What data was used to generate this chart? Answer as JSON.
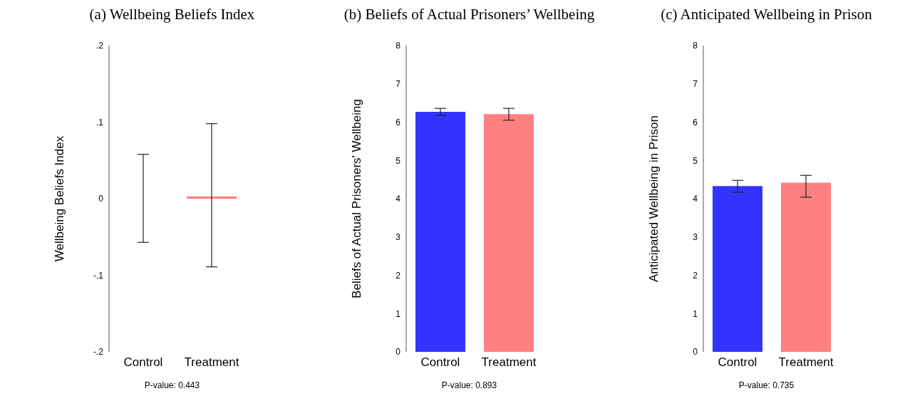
{
  "chart_data": [
    {
      "type": "bar",
      "title": "(a) Wellbeing Beliefs Index",
      "ylabel": "Wellbeing Beliefs Index",
      "categories": [
        "Control",
        "Treatment"
      ],
      "values": [
        0,
        0.003
      ],
      "colors": [
        "#3333ff",
        "#ff8080"
      ],
      "errors": [
        [
          -0.057,
          0.058
        ],
        [
          -0.089,
          0.098
        ]
      ],
      "ylim": [
        -0.2,
        0.2
      ],
      "yticks": [
        {
          "value": -0.2,
          "label": "-.2"
        },
        {
          "value": -0.1,
          "label": "-.1"
        },
        0,
        {
          "value": 0.1,
          "label": ".1"
        },
        {
          "value": 0.2,
          "label": ".2"
        }
      ],
      "annotations": [
        "P-value: 0.443"
      ]
    },
    {
      "type": "bar",
      "title": "(b) Beliefs of Actual Prisoners’ Wellbeing",
      "ylabel": "Beliefs of Actual Prisoners' Wellbeing",
      "categories": [
        "Control",
        "Treatment"
      ],
      "values": [
        6.27,
        6.21
      ],
      "colors": [
        "#3333ff",
        "#ff8080"
      ],
      "errors": [
        [
          6.18,
          6.36
        ],
        [
          6.05,
          6.36
        ]
      ],
      "ylim": [
        0,
        8
      ],
      "yticks": [
        0,
        1,
        2,
        3,
        4,
        5,
        6,
        7,
        8
      ],
      "annotations": [
        "P-value: 0.893"
      ]
    },
    {
      "type": "bar",
      "title": "(c) Anticipated Wellbeing in Prison",
      "ylabel": "Anticipated Wellbeing in Prison",
      "categories": [
        "Control",
        "Treatment"
      ],
      "values": [
        4.33,
        4.42
      ],
      "colors": [
        "#3333ff",
        "#ff8080"
      ],
      "errors": [
        [
          4.17,
          4.48
        ],
        [
          4.04,
          4.61
        ]
      ],
      "ylim": [
        0,
        8
      ],
      "yticks": [
        0,
        1,
        2,
        3,
        4,
        5,
        6,
        7,
        8
      ],
      "annotations": [
        "P-value: 0.735"
      ]
    }
  ]
}
